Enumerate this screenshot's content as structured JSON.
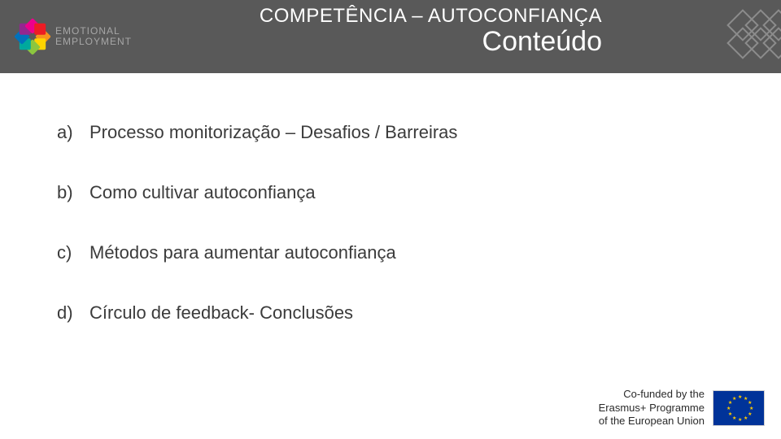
{
  "header": {
    "logo_line1": "EMOTIONAL",
    "logo_line2": "EMPLOYMENT",
    "title_small": "COMPETÊNCIA – AUTOCONFIANÇA",
    "title_big": "Conteúdo",
    "petal_colors": [
      "#f7941d",
      "#ffd400",
      "#8cc63f",
      "#00a99d",
      "#0072bc",
      "#92278f",
      "#ec008c",
      "#ed1c24"
    ]
  },
  "items": [
    {
      "marker": "a)",
      "text": "Processo monitorização – Desafios / Barreiras"
    },
    {
      "marker": "b)",
      "text": "Como cultivar autoconfiança"
    },
    {
      "marker": "c)",
      "text": "Métodos para aumentar autoconfiança"
    },
    {
      "marker": "d)",
      "text": "Círculo de feedback- Conclusões"
    }
  ],
  "footer": {
    "line1": "Co-funded by the",
    "line2": "Erasmus+ Programme",
    "line3": "of the European Union"
  },
  "colors": {
    "header_bg": "#595959",
    "text": "#3b3b3b",
    "eu_blue": "#003399",
    "eu_gold": "#ffcc00"
  }
}
